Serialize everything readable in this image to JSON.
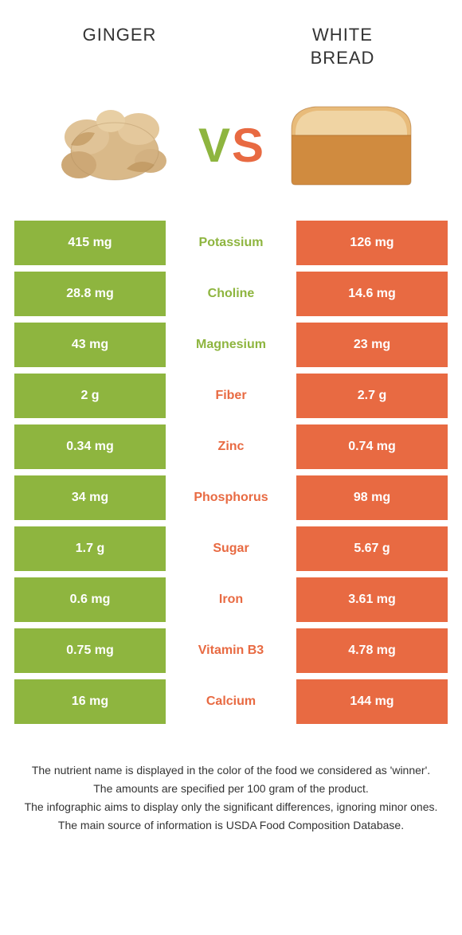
{
  "colors": {
    "green": "#8eb53f",
    "orange": "#e86a42",
    "green_text": "#8eb53f",
    "orange_text": "#e86a42",
    "header_text": "#333333",
    "footer_text": "#333333",
    "background": "#ffffff"
  },
  "header": {
    "left": "GINGER",
    "right": "WHITE\nBREAD"
  },
  "vs": {
    "v": "V",
    "s": "S"
  },
  "rows": [
    {
      "nutrient": "Potassium",
      "left": "415 mg",
      "right": "126 mg",
      "winner": "left"
    },
    {
      "nutrient": "Choline",
      "left": "28.8 mg",
      "right": "14.6 mg",
      "winner": "left"
    },
    {
      "nutrient": "Magnesium",
      "left": "43 mg",
      "right": "23 mg",
      "winner": "left"
    },
    {
      "nutrient": "Fiber",
      "left": "2 g",
      "right": "2.7 g",
      "winner": "right"
    },
    {
      "nutrient": "Zinc",
      "left": "0.34 mg",
      "right": "0.74 mg",
      "winner": "right"
    },
    {
      "nutrient": "Phosphorus",
      "left": "34 mg",
      "right": "98 mg",
      "winner": "right"
    },
    {
      "nutrient": "Sugar",
      "left": "1.7 g",
      "right": "5.67 g",
      "winner": "right"
    },
    {
      "nutrient": "Iron",
      "left": "0.6 mg",
      "right": "3.61 mg",
      "winner": "right"
    },
    {
      "nutrient": "Vitamin B3",
      "left": "0.75 mg",
      "right": "4.78 mg",
      "winner": "right"
    },
    {
      "nutrient": "Calcium",
      "left": "16 mg",
      "right": "144 mg",
      "winner": "right"
    }
  ],
  "footer": {
    "l1": "The nutrient name is displayed in the color of the food we considered as 'winner'.",
    "l2": "The amounts are specified per 100 gram of the product.",
    "l3": "The infographic aims to display only the significant differences, ignoring minor ones.",
    "l4": "The main source of information is USDA Food Composition Database."
  }
}
